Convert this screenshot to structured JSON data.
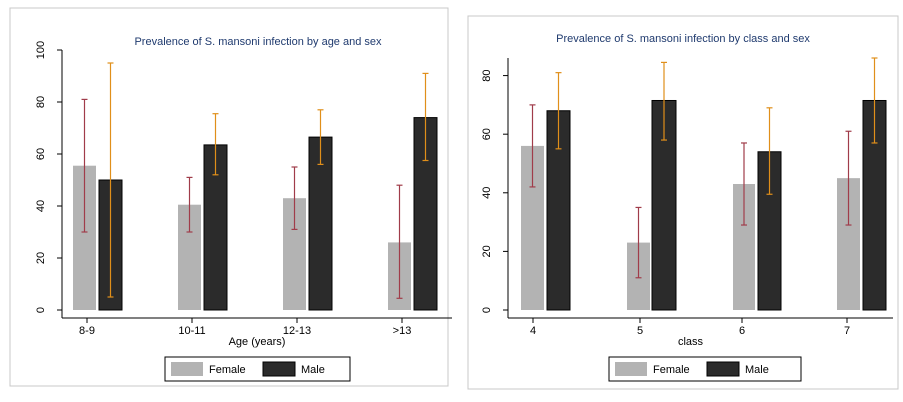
{
  "chart_data": [
    {
      "type": "bar",
      "title": "Prevalence of S. mansoni infection by age and sex",
      "xlabel": "Age (years)",
      "ylabel": "",
      "categories": [
        "8-9",
        "10-11",
        "12-13",
        ">13"
      ],
      "ylim": [
        0,
        100
      ],
      "yticks": [
        "0",
        "20",
        "40",
        "60",
        "80",
        "100"
      ],
      "series": [
        {
          "name": "Female",
          "color": "#b3b3b3",
          "values": [
            55.5,
            40.5,
            43,
            26
          ],
          "ci_low": [
            30,
            30,
            31,
            4.5
          ],
          "ci_high": [
            81,
            51,
            55,
            48
          ],
          "err_color": "#a03c4a"
        },
        {
          "name": "Male",
          "color": "#2b2b2b",
          "values": [
            50,
            63.5,
            66.5,
            74
          ],
          "ci_low": [
            5,
            52,
            56,
            57.5
          ],
          "ci_high": [
            95,
            75.5,
            77,
            91
          ],
          "err_color": "#e08f1a"
        }
      ],
      "legend_position": "bottom"
    },
    {
      "type": "bar",
      "title": "Prevalence of S. mansoni infection by class and sex",
      "xlabel": "class",
      "ylabel": "",
      "categories": [
        "4",
        "5",
        "6",
        "7"
      ],
      "ylim": [
        0,
        86
      ],
      "yticks": [
        "0",
        "20",
        "40",
        "60",
        "80"
      ],
      "series": [
        {
          "name": "Female",
          "color": "#b3b3b3",
          "values": [
            56,
            23,
            43,
            45
          ],
          "ci_low": [
            42,
            11,
            29,
            29
          ],
          "ci_high": [
            70,
            35,
            57,
            61
          ],
          "err_color": "#a03c4a"
        },
        {
          "name": "Male",
          "color": "#2b2b2b",
          "values": [
            68,
            71.5,
            54,
            71.5
          ],
          "ci_low": [
            55,
            58,
            39.5,
            57
          ],
          "ci_high": [
            81,
            84.5,
            69,
            86
          ],
          "err_color": "#e08f1a"
        }
      ],
      "legend_position": "bottom"
    }
  ]
}
